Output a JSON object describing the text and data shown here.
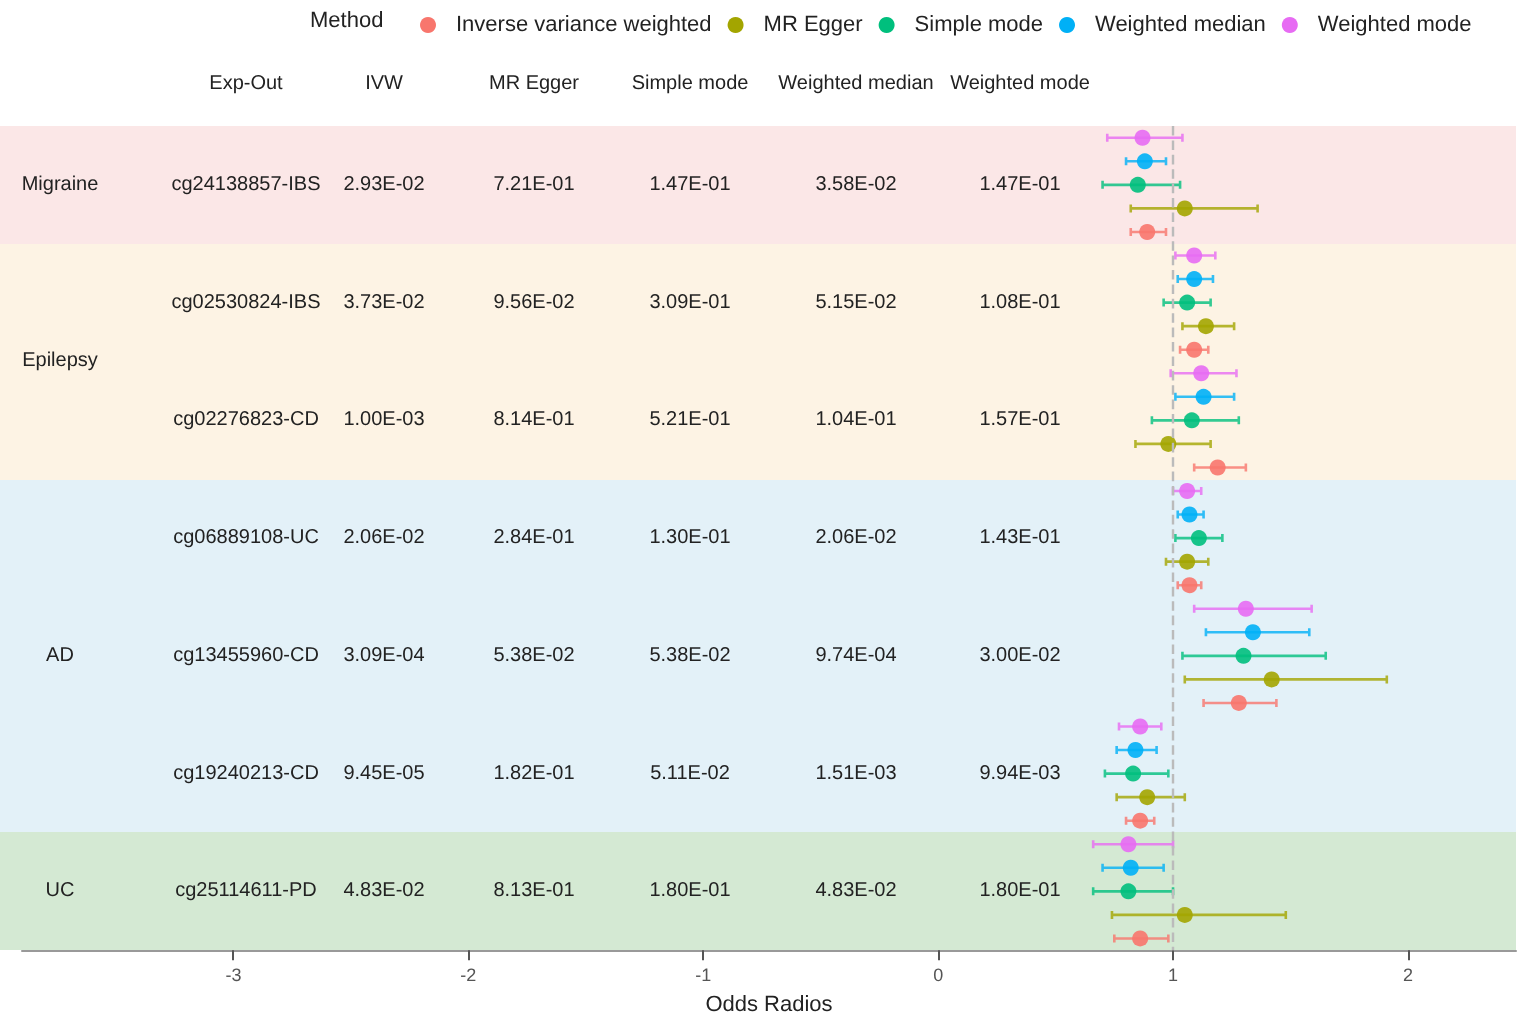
{
  "chart_data": {
    "type": "scatter",
    "orientation": "horizontal",
    "xlabel": "Odds Radios",
    "legend_title": "Method",
    "legend": "top",
    "grid": false,
    "marker": "circle",
    "categories": [
      null,
      null,
      null,
      null,
      null,
      null,
      null,
      null,
      null,
      null,
      null,
      null,
      null,
      null,
      null,
      null,
      null,
      null,
      null,
      null,
      null,
      null,
      null,
      null,
      null,
      null,
      null,
      null,
      null,
      null,
      null,
      null,
      null,
      null,
      null
    ],
    "xlim": [
      -3.9,
      2.46
    ],
    "xticks": [
      -3,
      -2,
      -1,
      0,
      1,
      2
    ],
    "series": [
      {
        "name": "Inverse variance weighted",
        "color": "#f8766d",
        "values": [
          null,
          null,
          null,
          null,
          0.89,
          null,
          null,
          null,
          null,
          1.09,
          null,
          null,
          null,
          null,
          1.19,
          null,
          null,
          null,
          null,
          1.07,
          null,
          null,
          null,
          null,
          1.28,
          null,
          null,
          null,
          null,
          0.86,
          null,
          null,
          null,
          null,
          0.86
        ],
        "errors": [
          null,
          null,
          null,
          null,
          [
            0.82,
            0.97
          ],
          null,
          null,
          null,
          null,
          [
            1.03,
            1.15
          ],
          null,
          null,
          null,
          null,
          [
            1.09,
            1.31
          ],
          null,
          null,
          null,
          null,
          [
            1.02,
            1.12
          ],
          null,
          null,
          null,
          null,
          [
            1.13,
            1.44
          ],
          null,
          null,
          null,
          null,
          [
            0.8,
            0.92
          ],
          null,
          null,
          null,
          null,
          [
            0.75,
            0.98
          ]
        ]
      },
      {
        "name": "MR Egger",
        "color": "#a3a500",
        "values": [
          null,
          null,
          null,
          1.05,
          null,
          null,
          null,
          null,
          1.14,
          null,
          null,
          null,
          null,
          0.98,
          null,
          null,
          null,
          null,
          1.06,
          null,
          null,
          null,
          null,
          1.42,
          null,
          null,
          null,
          null,
          0.89,
          null,
          null,
          null,
          null,
          1.05,
          null
        ],
        "errors": [
          null,
          null,
          null,
          [
            0.82,
            1.36
          ],
          null,
          null,
          null,
          null,
          [
            1.04,
            1.26
          ],
          null,
          null,
          null,
          null,
          [
            0.84,
            1.16
          ],
          null,
          null,
          null,
          null,
          [
            0.97,
            1.15
          ],
          null,
          null,
          null,
          null,
          [
            1.05,
            1.91
          ],
          null,
          null,
          null,
          null,
          [
            0.76,
            1.05
          ],
          null,
          null,
          null,
          null,
          [
            0.74,
            1.48
          ],
          null
        ]
      },
      {
        "name": "Simple mode",
        "color": "#00bf7d",
        "values": [
          null,
          null,
          0.85,
          null,
          null,
          null,
          null,
          1.06,
          null,
          null,
          null,
          null,
          1.08,
          null,
          null,
          null,
          null,
          1.11,
          null,
          null,
          null,
          null,
          1.3,
          null,
          null,
          null,
          null,
          0.83,
          null,
          null,
          null,
          null,
          0.81,
          null,
          null
        ],
        "errors": [
          null,
          null,
          [
            0.7,
            1.03
          ],
          null,
          null,
          null,
          null,
          [
            0.96,
            1.16
          ],
          null,
          null,
          null,
          null,
          [
            0.91,
            1.28
          ],
          null,
          null,
          null,
          null,
          [
            1.01,
            1.21
          ],
          null,
          null,
          null,
          null,
          [
            1.04,
            1.65
          ],
          null,
          null,
          null,
          null,
          [
            0.71,
            0.98
          ],
          null,
          null,
          null,
          null,
          [
            0.66,
            1.0
          ],
          null,
          null
        ]
      },
      {
        "name": "Weighted median",
        "color": "#00b0f6",
        "values": [
          null,
          0.88,
          null,
          null,
          null,
          null,
          1.09,
          null,
          null,
          null,
          null,
          1.13,
          null,
          null,
          null,
          null,
          1.07,
          null,
          null,
          null,
          null,
          1.34,
          null,
          null,
          null,
          null,
          0.84,
          null,
          null,
          null,
          null,
          0.82,
          null,
          null,
          null
        ],
        "errors": [
          null,
          [
            0.8,
            0.97
          ],
          null,
          null,
          null,
          null,
          [
            1.02,
            1.17
          ],
          null,
          null,
          null,
          null,
          [
            1.01,
            1.26
          ],
          null,
          null,
          null,
          null,
          [
            1.02,
            1.13
          ],
          null,
          null,
          null,
          null,
          [
            1.14,
            1.58
          ],
          null,
          null,
          null,
          null,
          [
            0.76,
            0.93
          ],
          null,
          null,
          null,
          null,
          [
            0.7,
            0.96
          ],
          null,
          null,
          null
        ]
      },
      {
        "name": "Weighted mode",
        "color": "#e76bf3",
        "values": [
          0.87,
          null,
          null,
          null,
          null,
          1.09,
          null,
          null,
          null,
          null,
          1.12,
          null,
          null,
          null,
          null,
          1.06,
          null,
          null,
          null,
          null,
          1.31,
          null,
          null,
          null,
          null,
          0.86,
          null,
          null,
          null,
          null,
          0.81,
          null,
          null,
          null,
          null
        ],
        "errors": [
          [
            0.72,
            1.04
          ],
          null,
          null,
          null,
          null,
          [
            1.01,
            1.18
          ],
          null,
          null,
          null,
          null,
          [
            0.99,
            1.27
          ],
          null,
          null,
          null,
          null,
          [
            1.0,
            1.12
          ],
          null,
          null,
          null,
          null,
          [
            1.09,
            1.59
          ],
          null,
          null,
          null,
          null,
          [
            0.77,
            0.95
          ],
          null,
          null,
          null,
          null,
          [
            0.66,
            1.0
          ],
          null,
          null,
          null,
          null
        ]
      }
    ],
    "ref_lines": [
      {
        "axis": "x",
        "value": 1,
        "color": "#bbbbbb",
        "line_style": "dashed"
      }
    ],
    "annotations": [
      "Migraine",
      "Epilepsy",
      "AD",
      "UC",
      "Exp-Out",
      "IVW",
      "MR Egger",
      "Simple mode",
      "Weighted median",
      "Weighted mode",
      "cg24138857-IBS",
      "2.93E-02",
      "7.21E-01",
      "1.47E-01",
      "3.58E-02",
      "1.47E-01",
      "cg02530824-IBS",
      "3.73E-02",
      "9.56E-02",
      "3.09E-01",
      "5.15E-02",
      "1.08E-01",
      "cg02276823-CD",
      "1.00E-03",
      "8.14E-01",
      "5.21E-01",
      "1.04E-01",
      "1.57E-01",
      "cg06889108-UC",
      "2.06E-02",
      "2.84E-01",
      "1.30E-01",
      "2.06E-02",
      "1.43E-01",
      "cg13455960-CD",
      "3.09E-04",
      "5.38E-02",
      "5.38E-02",
      "9.74E-04",
      "3.00E-02",
      "cg19240213-CD",
      "9.45E-05",
      "1.82E-01",
      "5.11E-02",
      "1.51E-03",
      "9.94E-03",
      "cg25114611-PD",
      "4.83E-02",
      "8.13E-01",
      "1.80E-01",
      "4.83E-02",
      "1.80E-01"
    ]
  }
}
